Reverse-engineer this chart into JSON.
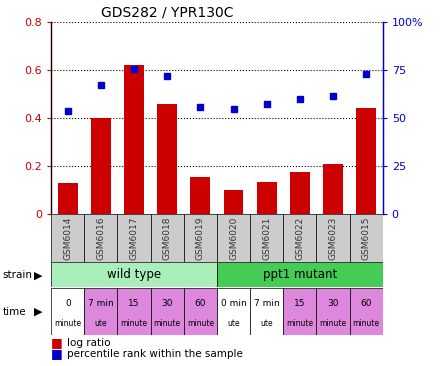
{
  "title": "GDS282 / YPR130C",
  "samples": [
    "GSM6014",
    "GSM6016",
    "GSM6017",
    "GSM6018",
    "GSM6019",
    "GSM6020",
    "GSM6021",
    "GSM6022",
    "GSM6023",
    "GSM6015"
  ],
  "log_ratio": [
    0.13,
    0.4,
    0.62,
    0.46,
    0.155,
    0.1,
    0.135,
    0.175,
    0.21,
    0.44
  ],
  "percentile": [
    0.535,
    0.67,
    0.755,
    0.72,
    0.555,
    0.545,
    0.575,
    0.6,
    0.615,
    0.73
  ],
  "bar_color": "#cc0000",
  "dot_color": "#0000cc",
  "left_ylim": [
    0,
    0.8
  ],
  "right_ylim": [
    0,
    1.0
  ],
  "left_yticks": [
    0,
    0.2,
    0.4,
    0.6,
    0.8
  ],
  "right_yticklabels": [
    "0",
    "25",
    "50",
    "75",
    "100%"
  ],
  "left_yticklabels": [
    "0",
    "0.2",
    "0.4",
    "0.6",
    "0.8"
  ],
  "strain_groups": [
    {
      "label": "wild type",
      "start": 0,
      "end": 5,
      "color": "#aaeebb"
    },
    {
      "label": "ppt1 mutant",
      "start": 5,
      "end": 10,
      "color": "#44cc55"
    }
  ],
  "time_labels": [
    {
      "line1": "0",
      "line2": "minute",
      "color": "#ffffff",
      "idx": 0
    },
    {
      "line1": "7 min",
      "line2": "ute",
      "color": "#dd88dd",
      "idx": 1
    },
    {
      "line1": "15",
      "line2": "minute",
      "color": "#dd88dd",
      "idx": 2
    },
    {
      "line1": "30",
      "line2": "minute",
      "color": "#dd88dd",
      "idx": 3
    },
    {
      "line1": "60",
      "line2": "minute",
      "color": "#dd88dd",
      "idx": 4
    },
    {
      "line1": "0 min",
      "line2": "ute",
      "color": "#ffffff",
      "idx": 5
    },
    {
      "line1": "7 min",
      "line2": "ute",
      "color": "#ffffff",
      "idx": 6
    },
    {
      "line1": "15",
      "line2": "minute",
      "color": "#dd88dd",
      "idx": 7
    },
    {
      "line1": "30",
      "line2": "minute",
      "color": "#dd88dd",
      "idx": 8
    },
    {
      "line1": "60",
      "line2": "minute",
      "color": "#dd88dd",
      "idx": 9
    }
  ],
  "sample_bg": "#cccccc",
  "grid_color": "#000000",
  "bg_color": "#ffffff"
}
